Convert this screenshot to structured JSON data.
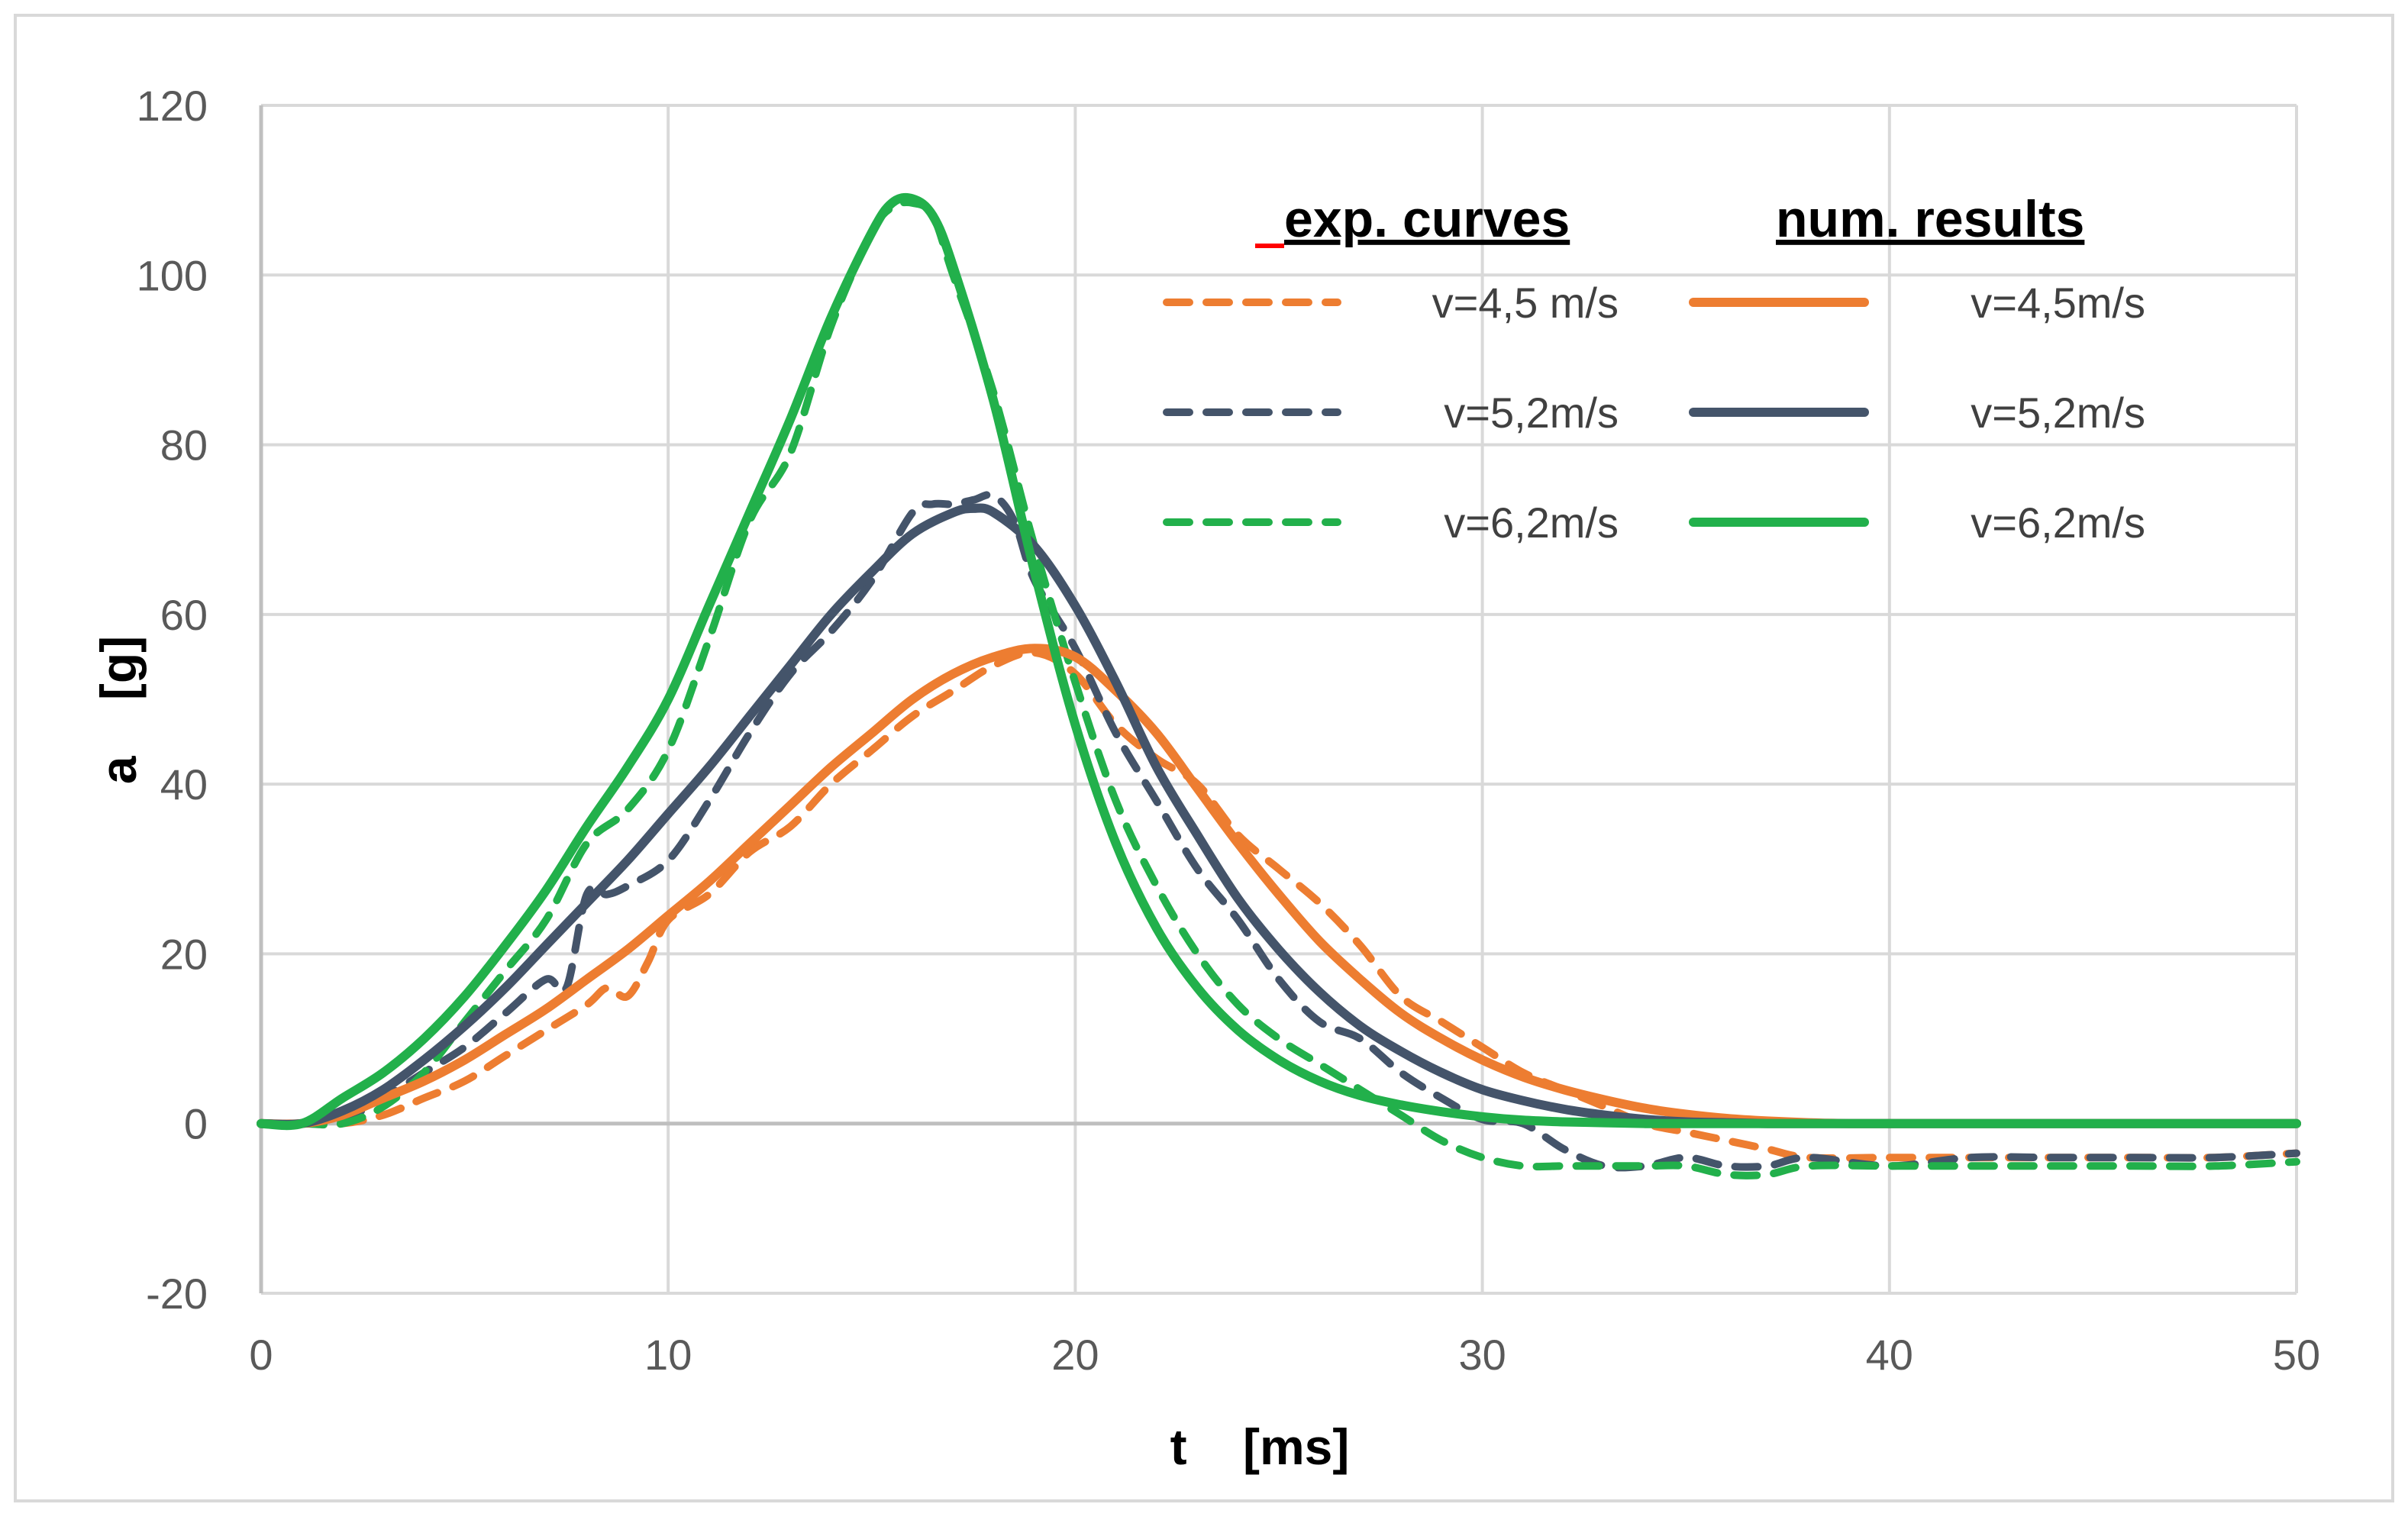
{
  "chart_data": {
    "type": "line",
    "title": "",
    "xlabel": "t    [ms]",
    "ylabel": "a    [g]",
    "xlim": [
      0,
      50
    ],
    "ylim": [
      -20,
      120
    ],
    "x_ticks": [
      "0",
      "10",
      "20",
      "30",
      "40",
      "50"
    ],
    "y_ticks": [
      "-20",
      "0",
      "20",
      "40",
      "60",
      "80",
      "100",
      "120"
    ],
    "grid": true,
    "legend_position": "top-right",
    "legend_groups": [
      {
        "header": "exp. curves",
        "style": "dashed"
      },
      {
        "header": "num. results",
        "style": "solid"
      }
    ],
    "series": [
      {
        "name": "v=4,5 m/s",
        "group": "exp. curves",
        "style": "dashed",
        "color": "#ED7D31",
        "x": [
          0,
          1,
          2,
          3,
          4,
          5,
          6,
          7,
          8,
          8.5,
          9,
          9.5,
          10,
          11,
          12,
          13,
          14,
          15,
          16,
          17,
          18,
          19,
          20,
          21,
          22,
          23,
          24,
          25,
          26,
          27,
          28,
          29,
          30,
          31,
          32,
          33,
          34,
          35,
          36,
          37,
          38,
          40,
          42,
          44,
          46,
          48,
          50
        ],
        "y": [
          0,
          0,
          0,
          1,
          3,
          5,
          8,
          11,
          14,
          16,
          15,
          19,
          24,
          27,
          32,
          35,
          40,
          44,
          48,
          51,
          54,
          55.5,
          53,
          47,
          43,
          40,
          34,
          30,
          26,
          21,
          15,
          12,
          9,
          6,
          4,
          2,
          0,
          -1,
          -2,
          -3,
          -4,
          -4,
          -4,
          -4,
          -4,
          -4,
          -3.5
        ]
      },
      {
        "name": "v=5,2m/s",
        "group": "exp. curves",
        "style": "dashed",
        "color": "#44546A",
        "x": [
          0,
          1,
          2,
          3,
          4,
          5,
          6,
          7,
          7.5,
          8,
          8.5,
          9,
          10,
          11,
          12,
          13,
          14,
          15,
          16,
          16.5,
          17,
          17.5,
          18,
          18.5,
          19,
          20,
          21,
          22,
          23,
          24,
          25,
          26,
          27,
          28,
          29,
          30,
          31,
          32,
          33,
          34,
          35,
          36,
          37,
          38,
          40,
          42,
          44,
          46,
          48,
          50
        ],
        "y": [
          0,
          0,
          0.5,
          3,
          6,
          9,
          13,
          17,
          16,
          27,
          27,
          28,
          31,
          38,
          46,
          53,
          58,
          64,
          72,
          73,
          73,
          73.5,
          74,
          71,
          64,
          56,
          46,
          38,
          30,
          24,
          17,
          12,
          10,
          6,
          3,
          0.5,
          0,
          -3,
          -5,
          -5,
          -4,
          -5,
          -5,
          -4,
          -5,
          -4,
          -4,
          -4,
          -4,
          -3.5
        ]
      },
      {
        "name": "v=6,2m/s",
        "group": "exp. curves",
        "style": "dashed",
        "color": "#22B04B",
        "x": [
          0,
          1,
          2,
          3,
          4,
          5,
          6,
          7,
          8,
          9,
          10,
          11,
          12,
          13,
          14,
          15,
          15.5,
          16,
          16.5,
          17,
          18,
          19,
          20,
          21,
          22,
          23,
          24,
          25,
          26,
          27,
          28,
          29,
          30,
          31,
          32,
          33,
          34,
          35,
          36,
          37,
          38,
          40,
          42,
          44,
          46,
          48,
          50
        ],
        "y": [
          0,
          0,
          0,
          2,
          6,
          12,
          18,
          24,
          33,
          37,
          44,
          57,
          71,
          79,
          94,
          105,
          108,
          108.5,
          107,
          100,
          86,
          68,
          52,
          38,
          28,
          20,
          14,
          10,
          7,
          4,
          1,
          -2,
          -4,
          -5,
          -5,
          -5,
          -5,
          -5,
          -6,
          -6,
          -5,
          -5,
          -5,
          -5,
          -5,
          -5,
          -4.5
        ]
      },
      {
        "name": "v=4,5m/s",
        "group": "num. results",
        "style": "solid",
        "color": "#ED7D31",
        "x": [
          0,
          1,
          2,
          3,
          4,
          5,
          6,
          7,
          8,
          9,
          10,
          11,
          12,
          13,
          14,
          15,
          16,
          17,
          18,
          19,
          20,
          21,
          22,
          23,
          24,
          25,
          26,
          27,
          28,
          29,
          30,
          31,
          32,
          33,
          34,
          35,
          36,
          37,
          38,
          39,
          40,
          42,
          44,
          46,
          48,
          50
        ],
        "y": [
          0,
          0,
          1,
          3,
          5,
          7.5,
          10.5,
          13.5,
          17,
          20.5,
          24.5,
          28.5,
          33,
          37.5,
          42,
          46,
          50,
          53,
          55,
          56,
          55,
          51,
          46,
          39.5,
          33,
          27,
          21.5,
          17,
          13,
          10,
          7.5,
          5.5,
          4,
          2.8,
          1.8,
          1.1,
          0.6,
          0.3,
          0.1,
          0,
          0,
          0,
          0,
          0,
          0,
          0
        ]
      },
      {
        "name": "v=5,2m/s",
        "group": "num. results",
        "style": "solid",
        "color": "#44546A",
        "x": [
          0,
          1,
          2,
          3,
          4,
          5,
          6,
          7,
          8,
          9,
          10,
          11,
          12,
          13,
          14,
          15,
          16,
          17,
          17.5,
          18,
          19,
          20,
          21,
          22,
          23,
          24,
          25,
          26,
          27,
          28,
          29,
          30,
          31,
          32,
          33,
          34,
          35,
          36,
          37,
          38,
          40,
          42,
          44,
          46,
          48,
          50
        ],
        "y": [
          0,
          0,
          1.5,
          4,
          7.5,
          11.5,
          16,
          21,
          26,
          31,
          36.5,
          42,
          48,
          54,
          60,
          65,
          69.5,
          72,
          72.5,
          72,
          68,
          61,
          52,
          42,
          34,
          26.5,
          20.5,
          15.5,
          11.5,
          8.5,
          6,
          4,
          2.7,
          1.7,
          1,
          0.5,
          0.2,
          0.1,
          0,
          0,
          0,
          0,
          0,
          0,
          0,
          0
        ]
      },
      {
        "name": "v=6,2m/s",
        "group": "num. results",
        "style": "solid",
        "color": "#22B04B",
        "x": [
          0,
          1,
          2,
          3,
          4,
          5,
          6,
          7,
          8,
          9,
          10,
          11,
          12,
          13,
          14,
          15,
          15.5,
          16,
          16.5,
          17,
          18,
          19,
          20,
          21,
          22,
          23,
          24,
          25,
          26,
          27,
          28,
          29,
          30,
          31,
          32,
          33,
          34,
          35,
          36,
          38,
          40,
          42,
          44,
          46,
          48,
          50
        ],
        "y": [
          0,
          0,
          3,
          6,
          10,
          15,
          21,
          27.5,
          35,
          42,
          50,
          61,
          72,
          83,
          95,
          105,
          108.5,
          109,
          107,
          101,
          85,
          65,
          47,
          33,
          23,
          16,
          11,
          7.5,
          5,
          3.3,
          2.2,
          1.4,
          0.8,
          0.4,
          0.2,
          0.1,
          0,
          0,
          0,
          0,
          0,
          0,
          0,
          0,
          0,
          0
        ]
      }
    ]
  }
}
